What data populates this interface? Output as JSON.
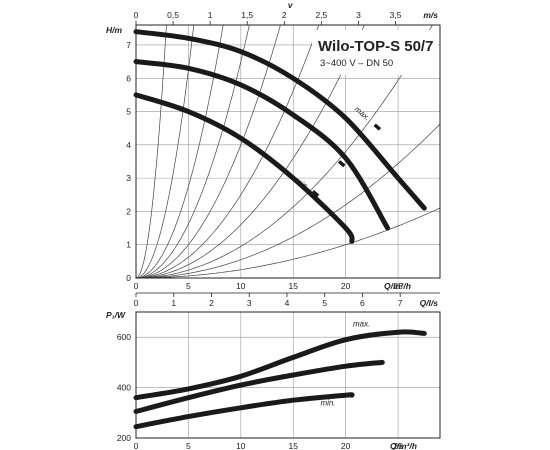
{
  "figure": {
    "title": "Wilo-TOP-S 50/7",
    "subtitle": "3~400 V – DN 50"
  },
  "chart_data": [
    {
      "type": "line",
      "name": "head-chart",
      "xlabel": "Q/m³/h",
      "ylabel": "H/m",
      "xlim": [
        0,
        29
      ],
      "ylim": [
        0,
        7.6
      ],
      "x_ticks": [
        0,
        5,
        10,
        15,
        20,
        25
      ],
      "y_ticks": [
        0,
        1,
        2,
        3,
        4,
        5,
        6,
        7
      ],
      "top_axis_v": {
        "label": "v",
        "ticks": [
          "0",
          "0,5",
          "1",
          "1,5",
          "2",
          "2,5",
          "3",
          "3,5"
        ],
        "values": [
          0,
          0.5,
          1,
          1.5,
          2,
          2.5,
          3,
          3.5
        ],
        "max": 4.1
      },
      "top_axis_ms": {
        "label": "m/s"
      },
      "bottom_axis_qls": {
        "label": "Q/l/s",
        "ticks": [
          "0",
          "1",
          "2",
          "3",
          "4",
          "5",
          "6",
          "7"
        ],
        "values": [
          0,
          1,
          2,
          3,
          4,
          5,
          6,
          7
        ]
      },
      "grid": true,
      "series": [
        {
          "name": "max.",
          "x": [
            0,
            5,
            10,
            15,
            20,
            25,
            27.5
          ],
          "y": [
            7.4,
            7.2,
            6.8,
            6.0,
            4.8,
            3.0,
            2.1
          ]
        },
        {
          "name": "",
          "x": [
            0,
            5,
            10,
            15,
            20,
            24
          ],
          "y": [
            6.5,
            6.3,
            5.8,
            4.9,
            3.6,
            1.5
          ]
        },
        {
          "name": "min.",
          "x": [
            0,
            5,
            10,
            15,
            20,
            20.6
          ],
          "y": [
            5.5,
            5.0,
            4.2,
            3.0,
            1.5,
            1.1
          ]
        }
      ],
      "system_curve_coefficients": [
        0.0025,
        0.0055,
        0.0095,
        0.016,
        0.025,
        0.04,
        0.065,
        0.11,
        0.25,
        0.9
      ]
    },
    {
      "type": "line",
      "name": "power-chart",
      "xlabel": "Q/m³/h",
      "ylabel": "P₁/W",
      "xlim": [
        0,
        29
      ],
      "ylim": [
        200,
        700
      ],
      "x_ticks": [
        0,
        5,
        10,
        15,
        20,
        25
      ],
      "y_ticks": [
        200,
        400,
        600
      ],
      "grid": true,
      "series": [
        {
          "name": "max.",
          "x": [
            0,
            5,
            10,
            15,
            20,
            25,
            27.5
          ],
          "y": [
            360,
            395,
            445,
            520,
            590,
            620,
            615
          ]
        },
        {
          "name": "",
          "x": [
            0,
            5,
            10,
            15,
            20,
            23.5
          ],
          "y": [
            305,
            360,
            410,
            450,
            485,
            500
          ]
        },
        {
          "name": "min.",
          "x": [
            0,
            5,
            10,
            15,
            20,
            20.6
          ],
          "y": [
            245,
            285,
            320,
            350,
            370,
            370
          ]
        }
      ]
    }
  ]
}
